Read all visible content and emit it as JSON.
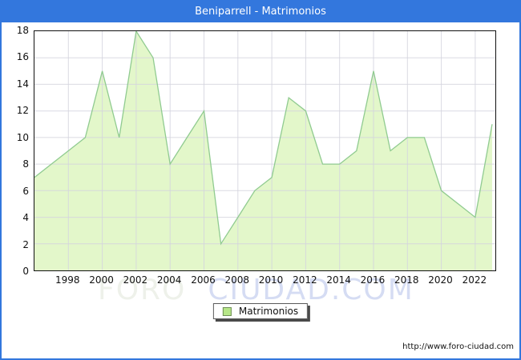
{
  "title": "Beniparrell - Matrimonios",
  "legend": {
    "label": "Matrimonios"
  },
  "watermark": {
    "part1": "FORO",
    "part2": "CIUDAD.COM"
  },
  "footer": {
    "url": "http://www.foro-ciudad.com"
  },
  "colors": {
    "titlebar_bg": "#3377dd",
    "window_border": "#3377dd",
    "area_fill": "#e3f7ca",
    "line_stroke": "#90cb90",
    "gridline": "#d4d4de",
    "plot_border": "#111111",
    "legend_swatch": "#b7e788",
    "watermark_gray": "#eef1ea",
    "watermark_blue": "#d5dcf3"
  },
  "chart_data": {
    "type": "area",
    "title": "Beniparrell - Matrimonios",
    "x": [
      1996,
      1997,
      1998,
      1999,
      2000,
      2001,
      2002,
      2003,
      2004,
      2005,
      2006,
      2007,
      2008,
      2009,
      2010,
      2011,
      2012,
      2013,
      2014,
      2015,
      2016,
      2017,
      2018,
      2019,
      2020,
      2021,
      2022,
      2023
    ],
    "values": [
      7,
      8,
      9,
      10,
      15,
      10,
      18,
      16,
      8,
      10,
      12,
      2,
      4,
      6,
      7,
      13,
      12,
      8,
      8,
      9,
      15,
      9,
      10,
      10,
      6,
      5,
      4,
      11
    ],
    "series_name": "Matrimonios",
    "xlabel": "",
    "ylabel": "",
    "ylim": [
      0,
      18
    ],
    "y_ticks": [
      0,
      2,
      4,
      6,
      8,
      10,
      12,
      14,
      16,
      18
    ],
    "x_tick_labels": [
      1998,
      2000,
      2002,
      2004,
      2006,
      2008,
      2010,
      2012,
      2014,
      2016,
      2018,
      2020,
      2022
    ],
    "grid": true,
    "legend_position": "bottom-center"
  }
}
